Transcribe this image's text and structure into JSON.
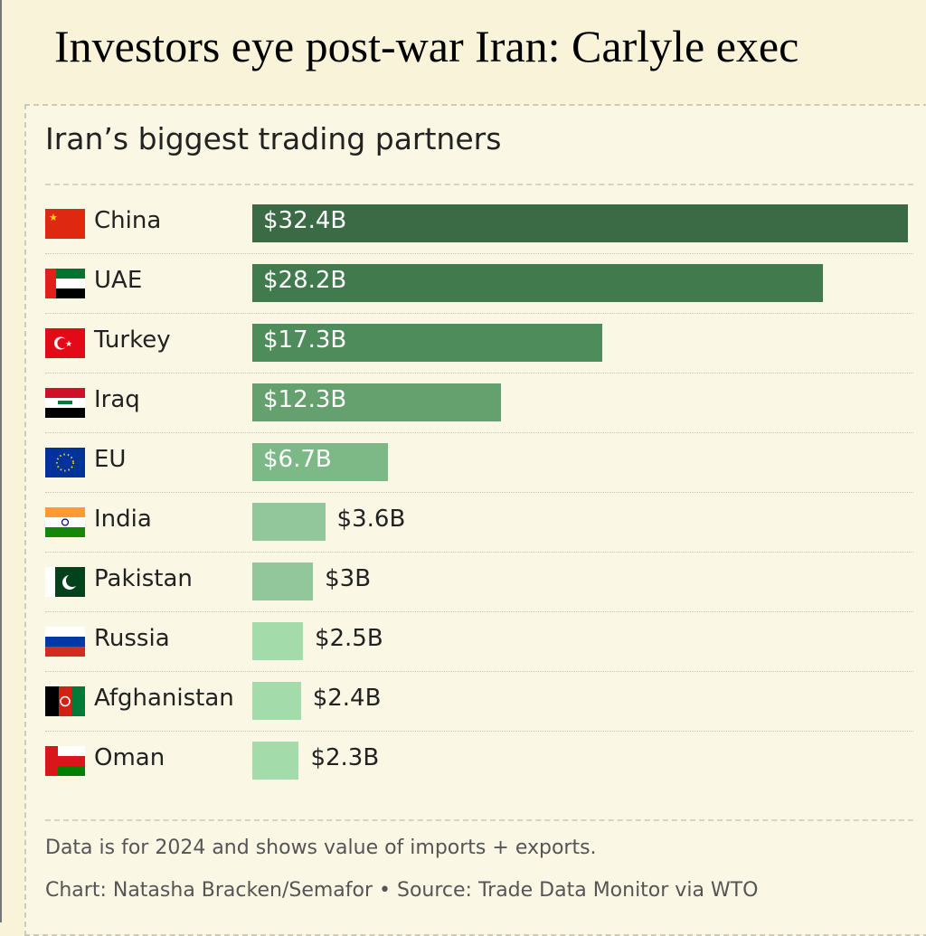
{
  "headline": "Investors eye post-war Iran: Carlyle exec",
  "chart_data": {
    "type": "bar",
    "orientation": "horizontal",
    "title": "Iran’s biggest trading partners",
    "categories": [
      "China",
      "UAE",
      "Turkey",
      "Iraq",
      "EU",
      "India",
      "Pakistan",
      "Russia",
      "Afghanistan",
      "Oman"
    ],
    "values": [
      32.4,
      28.2,
      17.3,
      12.3,
      6.7,
      3.6,
      3,
      2.5,
      2.4,
      2.3
    ],
    "labels": [
      "$32.4B",
      "$28.2B",
      "$17.3B",
      "$12.3B",
      "$6.7B",
      "$3.6B",
      "$3B",
      "$2.5B",
      "$2.4B",
      "$2.3B"
    ],
    "unit": "billion USD",
    "xlim": [
      0,
      32.4
    ],
    "colors": [
      "#3b6b45",
      "#407a4d",
      "#4f8c5b",
      "#65a16f",
      "#7db887",
      "#92c79b",
      "#92c79b",
      "#a4dbaa",
      "#a4dbaa",
      "#a4dbaa"
    ],
    "flags": [
      "china-flag",
      "uae-flag",
      "turkey-flag",
      "iraq-flag",
      "eu-flag",
      "india-flag",
      "pakistan-flag",
      "russia-flag",
      "afghanistan-flag",
      "oman-flag"
    ]
  },
  "footnote": "Data is for 2024 and shows value of imports + exports.",
  "credit": "Chart: Natasha Bracken/Semafor • Source: Trade Data Monitor via WTO"
}
